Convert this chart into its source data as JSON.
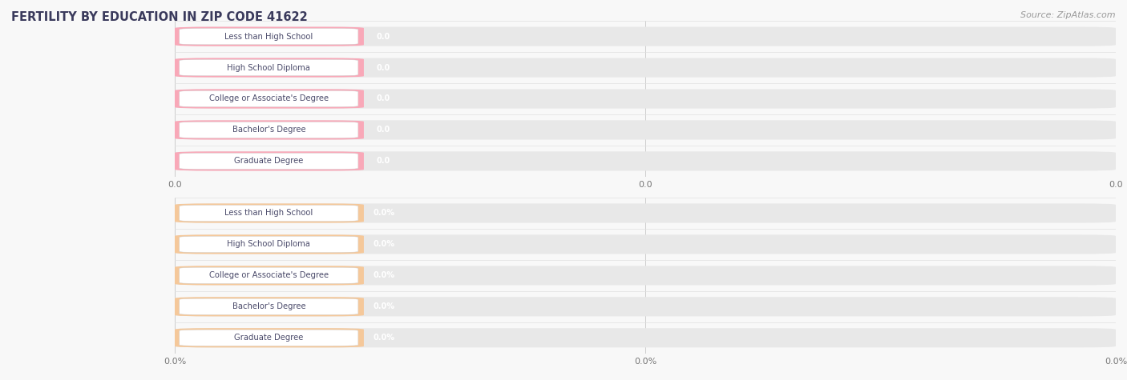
{
  "title": "FERTILITY BY EDUCATION IN ZIP CODE 41622",
  "source": "Source: ZipAtlas.com",
  "categories": [
    "Less than High School",
    "High School Diploma",
    "College or Associate's Degree",
    "Bachelor's Degree",
    "Graduate Degree"
  ],
  "values_top": [
    0.0,
    0.0,
    0.0,
    0.0,
    0.0
  ],
  "values_bottom": [
    0.0,
    0.0,
    0.0,
    0.0,
    0.0
  ],
  "bar_color_top": "#F9A8B8",
  "bar_color_bottom": "#F5C89A",
  "bar_bg_color": "#E8E8E8",
  "label_bg_color": "#FFFFFF",
  "label_text_color": "#4a4a6a",
  "value_text_color": "#FFFFFF",
  "tick_text_color": "#777777",
  "title_color": "#3a3a5c",
  "source_color": "#999999",
  "background_color": "#F8F8F8",
  "row_bg_color": "#F0F0F0",
  "grid_color": "#CCCCCC",
  "separator_color": "#E0E0E0"
}
